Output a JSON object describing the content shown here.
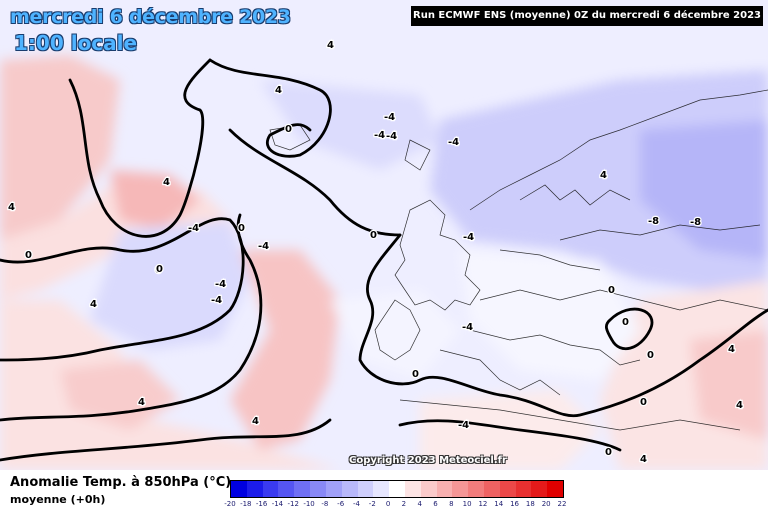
{
  "title": {
    "date": "mercredi 6 décembre 2023",
    "time": "1:00 locale"
  },
  "run_info": "Run ECMWF ENS (moyenne) 0Z du mercredi 6 décembre 2023",
  "copyright": "Copyright 2023 Meteociel.fr",
  "legend": {
    "title": "Anomalie Temp. à 850hPa (°C)",
    "subtitle": "moyenne   (+0h)",
    "ticks": [
      "-20",
      "-18",
      "-16",
      "-14",
      "-12",
      "-10",
      "-8",
      "-6",
      "-4",
      "-2",
      "0",
      "2",
      "4",
      "6",
      "8",
      "10",
      "12",
      "14",
      "16",
      "18",
      "20",
      "22"
    ],
    "colors": [
      "#0000e0",
      "#1c1cea",
      "#3a3af0",
      "#5555f2",
      "#6f6ff4",
      "#8888f6",
      "#a0a0f8",
      "#b8b8fa",
      "#cfcffc",
      "#e6e6fe",
      "#ffffff",
      "#fde4e4",
      "#fbcaca",
      "#f8b0b0",
      "#f59696",
      "#f27c7c",
      "#ef6262",
      "#ec4848",
      "#e83030",
      "#e41a1a",
      "#e00000"
    ]
  },
  "contour_labels": [
    {
      "text": "0"
    },
    {
      "text": "4"
    },
    {
      "text": "4"
    },
    {
      "text": "4"
    },
    {
      "text": "0"
    },
    {
      "text": "-4"
    },
    {
      "text": "-4"
    },
    {
      "text": "-4"
    },
    {
      "text": "-4"
    },
    {
      "text": "0"
    },
    {
      "text": "-4"
    },
    {
      "text": "4"
    },
    {
      "text": "-4"
    },
    {
      "text": "-4"
    },
    {
      "text": "0"
    },
    {
      "text": "4"
    },
    {
      "text": "-4"
    },
    {
      "text": "0"
    },
    {
      "text": "-4"
    },
    {
      "text": "4"
    },
    {
      "text": "4"
    },
    {
      "text": "-8"
    },
    {
      "text": "-8"
    },
    {
      "text": "0"
    },
    {
      "text": "0"
    },
    {
      "text": "-4"
    },
    {
      "text": "4"
    },
    {
      "text": "4"
    },
    {
      "text": "0"
    },
    {
      "text": "0"
    },
    {
      "text": "4"
    },
    {
      "text": "0"
    },
    {
      "text": "0"
    },
    {
      "text": "-4"
    },
    {
      "text": "0"
    },
    {
      "text": "4"
    }
  ]
}
